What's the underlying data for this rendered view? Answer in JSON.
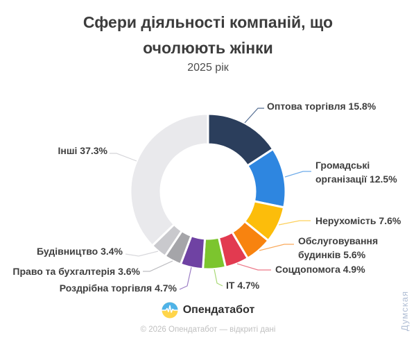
{
  "page": {
    "title_line1": "Сфери діяльності компаній, що",
    "title_line2": "очолюють жінки",
    "subtitle": "2025 рік",
    "footer_brand": "Опендатабот",
    "footer_copyright": "© 2026 Опендатабот — відкриті дані",
    "watermark": "Думская"
  },
  "chart_data": {
    "type": "pie",
    "subtype": "donut",
    "title": "Сфери діяльності компаній, що очолюють жінки",
    "subtitle": "2025 рік",
    "unit": "%",
    "legend_position": "none",
    "labels_connected_by_leader_lines": true,
    "slices": [
      {
        "name": "Оптова торгівля",
        "value": 15.8,
        "color": "#2b3e5c",
        "leader_color": "#566f94",
        "label_lines": [
          "Оптова торгівля 15.8%"
        ]
      },
      {
        "name": "Громадські організації",
        "value": 12.5,
        "color": "#2e86e0",
        "leader_color": "#6caae9",
        "label_lines": [
          "Громадські",
          "організації 12.5%"
        ]
      },
      {
        "name": "Нерухомість",
        "value": 7.6,
        "color": "#fcbd0b",
        "leader_color": "#fdd05a",
        "label_lines": [
          "Нерухомість 7.6%"
        ]
      },
      {
        "name": "Обслуговування будинків",
        "value": 5.6,
        "color": "#f8830f",
        "leader_color": "#faa95a",
        "label_lines": [
          "Обслуговування",
          "будинків 5.6%"
        ]
      },
      {
        "name": "Соцдопомога",
        "value": 4.9,
        "color": "#e23a50",
        "leader_color": "#ec7888",
        "label_lines": [
          "Соцдопомога 4.9%"
        ]
      },
      {
        "name": "IT",
        "value": 4.7,
        "color": "#7cc52e",
        "leader_color": "#a8d975",
        "label_lines": [
          "IT 4.7%"
        ]
      },
      {
        "name": "Роздрібна торгівля",
        "value": 4.7,
        "color": "#6f42a3",
        "leader_color": "#9b7cc4",
        "label_lines": [
          "Роздрібна торгівля 4.7%"
        ]
      },
      {
        "name": "Право та бухгалтерія",
        "value": 3.6,
        "color": "#a5a5a9",
        "leader_color": "#bcbcc0",
        "label_lines": [
          "Право та бухгалтерія 3.6%"
        ]
      },
      {
        "name": "Будівництво",
        "value": 3.4,
        "color": "#c9c9cd",
        "leader_color": "#d8d8dc",
        "label_lines": [
          "Будівництво 3.4%"
        ]
      },
      {
        "name": "Інші",
        "value": 37.3,
        "color": "#e9e9ec",
        "leader_color": "#d4d4d8",
        "label_lines": [
          "Інші 37.3%"
        ]
      }
    ]
  }
}
